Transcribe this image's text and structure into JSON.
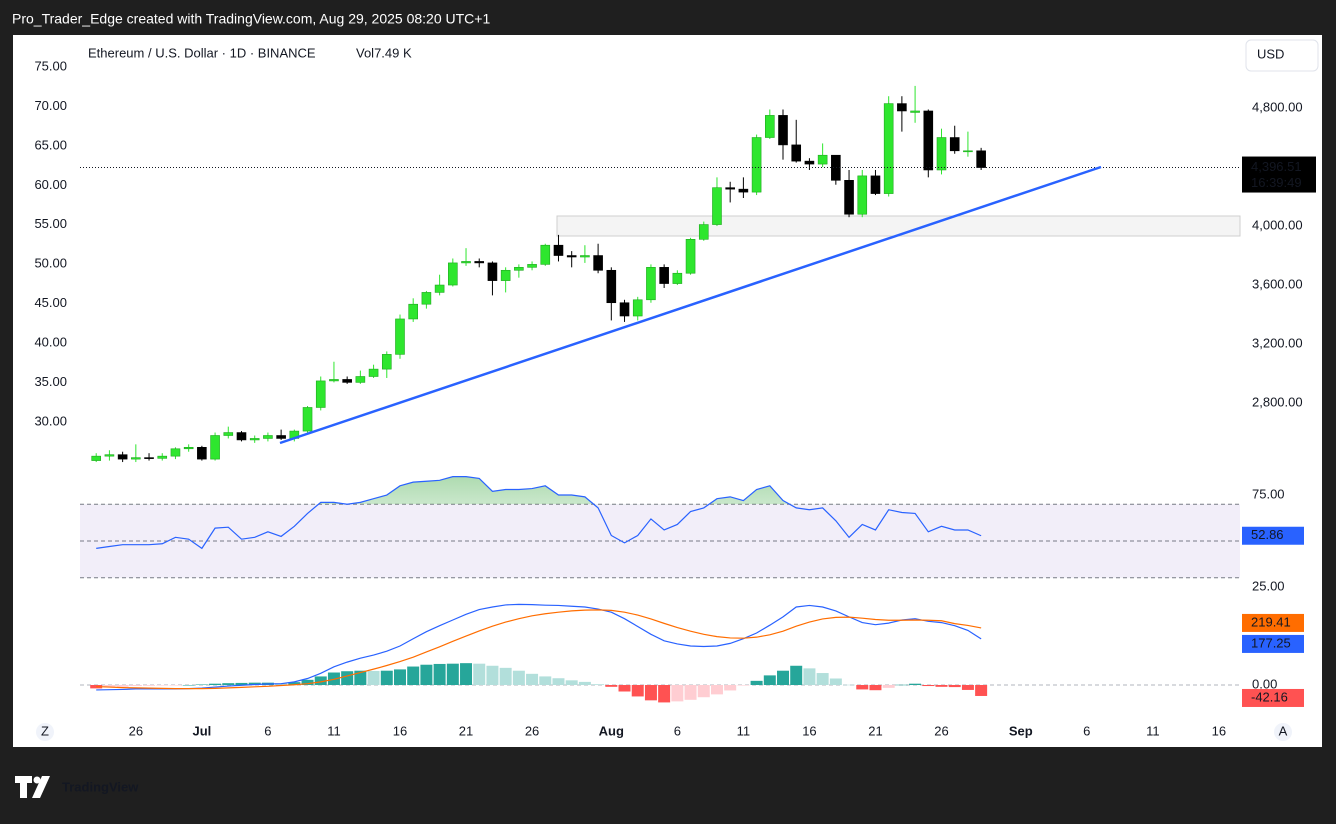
{
  "header": "Pro_Trader_Edge created with TradingView.com, Aug 29, 2025 08:20 UTC+1",
  "footer_logo": "TradingView",
  "chart_data": [
    {
      "type": "candlestick",
      "title": "Ethereum / U.S. Dollar · 1D · BINANCE",
      "volume_label": "Vol7.49 K",
      "currency": "USD",
      "buttons": [
        "Z",
        "A"
      ],
      "up_color": "#2ee62e",
      "down_color": "#000000",
      "open": [
        2410,
        2440,
        2450,
        2420,
        2430,
        2425,
        2440,
        2490,
        2500,
        2420,
        2580,
        2600,
        2550,
        2560,
        2580,
        2560,
        2610,
        2770,
        2950,
        2960,
        2940,
        2980,
        3030,
        3130,
        3370,
        3470,
        3550,
        3600,
        3750,
        3760,
        3750,
        3630,
        3700,
        3720,
        3740,
        3870,
        3800,
        3790,
        3800,
        3700,
        3480,
        3390,
        3500,
        3720,
        3610,
        3680,
        3910,
        4010,
        4260,
        4250,
        4230,
        4600,
        4750,
        4550,
        4440,
        4420,
        4480,
        4310,
        4080,
        4340,
        4220,
        4830,
        4770,
        4780,
        4380,
        4600,
        4510,
        4510
      ],
      "high": [
        2460,
        2480,
        2470,
        2520,
        2460,
        2460,
        2500,
        2520,
        2510,
        2600,
        2640,
        2610,
        2580,
        2600,
        2620,
        2620,
        2780,
        2980,
        3080,
        2980,
        3020,
        3060,
        3150,
        3400,
        3510,
        3560,
        3670,
        3780,
        3850,
        3780,
        3760,
        3720,
        3740,
        3760,
        3880,
        3940,
        3830,
        3870,
        3880,
        3720,
        3500,
        3520,
        3740,
        3740,
        3700,
        3920,
        4030,
        4330,
        4300,
        4330,
        4620,
        4790,
        4790,
        4720,
        4460,
        4560,
        4480,
        4380,
        4380,
        4380,
        4880,
        4880,
        4950,
        4790,
        4660,
        4680,
        4640,
        4530
      ],
      "low": [
        2400,
        2410,
        2400,
        2400,
        2410,
        2410,
        2420,
        2470,
        2410,
        2410,
        2560,
        2540,
        2530,
        2540,
        2550,
        2540,
        2600,
        2750,
        2940,
        2930,
        2930,
        2970,
        2970,
        3100,
        3350,
        3440,
        3530,
        3590,
        3730,
        3720,
        3530,
        3550,
        3650,
        3700,
        3730,
        3760,
        3720,
        3750,
        3680,
        3360,
        3350,
        3360,
        3480,
        3580,
        3600,
        3670,
        3900,
        4000,
        4160,
        4190,
        4210,
        4590,
        4450,
        4430,
        4380,
        4400,
        4280,
        4060,
        4060,
        4210,
        4200,
        4640,
        4700,
        4330,
        4350,
        4490,
        4470,
        4380
      ],
      "close": [
        2440,
        2450,
        2420,
        2430,
        2425,
        2440,
        2490,
        2500,
        2420,
        2580,
        2600,
        2550,
        2560,
        2580,
        2560,
        2610,
        2770,
        2950,
        2960,
        2940,
        2980,
        3030,
        3130,
        3370,
        3470,
        3550,
        3600,
        3750,
        3760,
        3750,
        3630,
        3700,
        3720,
        3740,
        3870,
        3800,
        3790,
        3800,
        3700,
        3480,
        3390,
        3500,
        3720,
        3610,
        3680,
        3910,
        4010,
        4260,
        4250,
        4230,
        4600,
        4750,
        4550,
        4440,
        4420,
        4480,
        4310,
        4080,
        4340,
        4220,
        4830,
        4780,
        4780,
        4380,
        4600,
        4510,
        4510,
        4396.51
      ],
      "last_price_label": "4,396.51",
      "countdown": "16:39:49",
      "ylim": [
        2380,
        5295
      ],
      "yticks": [
        {
          "value": 2800,
          "label": "2,800.00"
        },
        {
          "value": 3200,
          "label": "3,200.00"
        },
        {
          "value": 3600,
          "label": "3,600.00"
        },
        {
          "value": 4000,
          "label": "4,000.00"
        },
        {
          "value": 4800,
          "label": "4,800.00"
        }
      ],
      "y2lim": [
        24.55,
        79.06
      ],
      "y2ticks": [
        {
          "value": 30,
          "label": "30.00"
        },
        {
          "value": 35,
          "label": "35.00"
        },
        {
          "value": 40,
          "label": "40.00"
        },
        {
          "value": 45,
          "label": "45.00"
        },
        {
          "value": 50,
          "label": "50.00"
        },
        {
          "value": 55,
          "label": "55.00"
        },
        {
          "value": 60,
          "label": "60.00"
        },
        {
          "value": 65,
          "label": "65.00"
        },
        {
          "value": 70,
          "label": "70.00"
        },
        {
          "value": 75,
          "label": "75.00"
        }
      ],
      "xlim": [
        -6.3,
        86.6
      ],
      "xticks": [
        {
          "value": 3,
          "label": "26"
        },
        {
          "value": 8,
          "label": "Jul"
        },
        {
          "value": 13,
          "label": "6"
        },
        {
          "value": 18,
          "label": "11"
        },
        {
          "value": 23,
          "label": "16"
        },
        {
          "value": 28,
          "label": "21"
        },
        {
          "value": 33,
          "label": "26"
        },
        {
          "value": 39,
          "label": "Aug"
        },
        {
          "value": 44,
          "label": "6"
        },
        {
          "value": 49,
          "label": "11"
        },
        {
          "value": 54,
          "label": "16"
        },
        {
          "value": 59,
          "label": "21"
        },
        {
          "value": 64,
          "label": "26"
        },
        {
          "value": 70,
          "label": "Sep"
        },
        {
          "value": 75,
          "label": "6"
        },
        {
          "value": 80,
          "label": "11"
        },
        {
          "value": 85,
          "label": "16"
        }
      ]
    },
    {
      "type": "rsi",
      "series": [
        {
          "color": "#2962ff",
          "values": [
            46,
            47,
            48,
            48,
            48,
            48.5,
            52,
            51,
            46,
            57,
            57.5,
            51,
            52,
            55,
            52.5,
            58,
            65,
            71,
            71,
            70,
            71,
            73,
            75,
            80,
            82,
            82.5,
            83,
            85,
            85,
            84,
            77,
            78,
            78,
            78.5,
            80,
            75,
            75,
            74,
            68,
            53,
            49,
            53,
            62,
            56,
            59,
            66,
            68,
            73,
            74,
            72,
            78,
            80,
            72,
            68,
            67,
            68,
            61,
            52,
            59,
            56,
            67,
            65.5,
            65,
            55,
            58,
            56,
            56,
            52.86
          ]
        }
      ],
      "band": [
        30,
        70
      ],
      "midline": 50,
      "band_color": "#7e57c2",
      "overbought_color": "#4caf50",
      "ylim": [
        20.65,
        88.6
      ],
      "yticks": [
        {
          "value": 25,
          "label": "25.00"
        },
        {
          "value": 75,
          "label": "75.00"
        }
      ]
    },
    {
      "type": "macd",
      "series": [
        {
          "color": "#2962ff",
          "values": [
            -19,
            -18,
            -17,
            -15,
            -15,
            -15,
            -15,
            -14,
            -12,
            -8,
            -4,
            -1,
            2,
            4,
            5,
            12,
            25,
            45,
            70,
            88,
            103,
            115,
            130,
            150,
            178,
            205,
            228,
            250,
            272,
            290,
            300,
            308,
            310,
            309,
            307,
            306,
            303,
            300,
            292,
            280,
            255,
            225,
            195,
            170,
            158,
            150,
            148,
            150,
            160,
            178,
            200,
            230,
            262,
            300,
            306,
            300,
            285,
            262,
            240,
            232,
            238,
            250,
            255,
            245,
            240,
            228,
            210,
            177.25
          ]
        },
        {
          "color": "#ff6d00",
          "values": [
            -6,
            -8,
            -10,
            -11,
            -12,
            -13,
            -14,
            -14,
            -14,
            -13,
            -11,
            -9,
            -7,
            -5,
            -2,
            1,
            5,
            12,
            22,
            35,
            48,
            61,
            75,
            90,
            107,
            127,
            147,
            168,
            188,
            208,
            226,
            242,
            255,
            266,
            274,
            280,
            285,
            288,
            289,
            287,
            280,
            269,
            254,
            237,
            221,
            207,
            195,
            186,
            181,
            180,
            184,
            193,
            207,
            226,
            242,
            254,
            260,
            261,
            257,
            252,
            249,
            249,
            250,
            249,
            247,
            236,
            229,
            219.41
          ]
        }
      ],
      "histogram": {
        "values": [
          -13,
          -10,
          -7,
          -4,
          -3,
          -2,
          -1,
          0,
          2,
          5,
          7,
          8,
          9,
          9,
          7,
          11,
          20,
          33,
          48,
          53,
          55,
          54,
          55,
          60,
          71,
          78,
          81,
          82,
          84,
          82,
          74,
          66,
          55,
          43,
          33,
          26,
          18,
          12,
          3,
          -7,
          -25,
          -44,
          -59,
          -67,
          -63,
          -57,
          -47,
          -36,
          -21,
          -2,
          16,
          37,
          55,
          74,
          64,
          46,
          25,
          1,
          -17,
          -20,
          -11,
          1,
          5,
          -4,
          -7,
          -8,
          -19,
          -42.16
        ],
        "colors": {
          "positive_rising": "#26a69a",
          "positive_falling": "#b2dfdb",
          "negative_rising": "#ffcdd2",
          "negative_falling": "#ff5252"
        }
      },
      "ylim": [
        -76.9,
        326.9
      ],
      "yticks": [
        {
          "value": 0,
          "label": "0.00"
        }
      ]
    }
  ]
}
